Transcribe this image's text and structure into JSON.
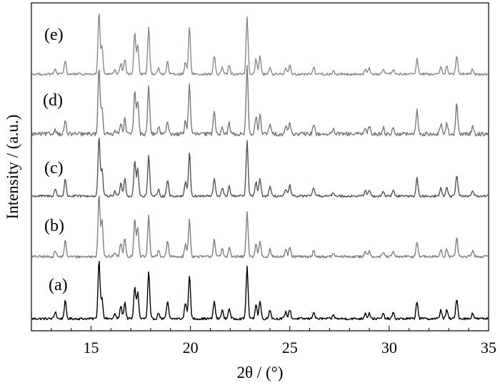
{
  "chart_data": {
    "type": "line",
    "xlabel": "2θ / (°)",
    "ylabel": "Intensity / (a.u.)",
    "xlim": [
      12,
      35
    ],
    "x_ticks": [
      15,
      20,
      25,
      30,
      35
    ],
    "y_ticks_shown": false,
    "grid": false,
    "legend": "none",
    "peaks_2theta": [
      13.2,
      13.7,
      15.4,
      15.55,
      16.2,
      16.5,
      16.7,
      17.2,
      17.35,
      17.9,
      18.4,
      18.85,
      19.75,
      19.95,
      21.2,
      21.6,
      21.95,
      22.85,
      23.3,
      23.5,
      24.0,
      24.8,
      25.0,
      26.2,
      27.2,
      28.8,
      29.0,
      29.7,
      30.2,
      31.4,
      32.6,
      32.9,
      33.4,
      34.2
    ],
    "series": [
      {
        "label": "(a)",
        "color": "#000000",
        "relative_intensities": [
          0.12,
          0.3,
          1.0,
          0.35,
          0.08,
          0.22,
          0.28,
          0.55,
          0.45,
          0.8,
          0.1,
          0.3,
          0.28,
          0.75,
          0.3,
          0.15,
          0.18,
          0.88,
          0.25,
          0.3,
          0.16,
          0.12,
          0.16,
          0.12,
          0.06,
          0.1,
          0.1,
          0.08,
          0.1,
          0.3,
          0.15,
          0.15,
          0.35,
          0.1
        ],
        "noise_level": 0.04
      },
      {
        "label": "(b)",
        "color": "#808080",
        "relative_intensities": [
          0.1,
          0.25,
          1.0,
          0.6,
          0.07,
          0.22,
          0.3,
          0.6,
          0.45,
          0.65,
          0.1,
          0.25,
          0.2,
          0.6,
          0.28,
          0.12,
          0.15,
          0.7,
          0.2,
          0.25,
          0.12,
          0.1,
          0.15,
          0.1,
          0.05,
          0.1,
          0.1,
          0.07,
          0.08,
          0.25,
          0.12,
          0.12,
          0.3,
          0.1
        ],
        "noise_level": 0.04
      },
      {
        "label": "(c)",
        "color": "#555555",
        "relative_intensities": [
          0.12,
          0.28,
          1.0,
          0.45,
          0.08,
          0.24,
          0.3,
          0.6,
          0.45,
          0.7,
          0.1,
          0.28,
          0.25,
          0.75,
          0.3,
          0.14,
          0.17,
          0.92,
          0.25,
          0.3,
          0.16,
          0.12,
          0.18,
          0.15,
          0.06,
          0.1,
          0.1,
          0.08,
          0.1,
          0.3,
          0.14,
          0.14,
          0.35,
          0.1
        ],
        "noise_level": 0.04
      },
      {
        "label": "(d)",
        "color": "#7a7a7a",
        "relative_intensities": [
          0.08,
          0.2,
          1.0,
          0.4,
          0.07,
          0.18,
          0.22,
          0.65,
          0.5,
          0.72,
          0.1,
          0.2,
          0.2,
          0.75,
          0.35,
          0.12,
          0.16,
          1.0,
          0.25,
          0.3,
          0.15,
          0.12,
          0.18,
          0.15,
          0.06,
          0.1,
          0.12,
          0.1,
          0.1,
          0.35,
          0.15,
          0.16,
          0.45,
          0.12
        ],
        "noise_level": 0.06
      },
      {
        "label": "(e)",
        "color": "#8a8a8a",
        "relative_intensities": [
          0.08,
          0.22,
          1.0,
          0.45,
          0.06,
          0.18,
          0.24,
          0.68,
          0.48,
          0.75,
          0.1,
          0.2,
          0.2,
          0.78,
          0.3,
          0.12,
          0.15,
          0.92,
          0.25,
          0.3,
          0.12,
          0.1,
          0.14,
          0.12,
          0.05,
          0.08,
          0.1,
          0.08,
          0.08,
          0.25,
          0.12,
          0.12,
          0.3,
          0.08
        ],
        "noise_level": 0.04
      }
    ]
  }
}
